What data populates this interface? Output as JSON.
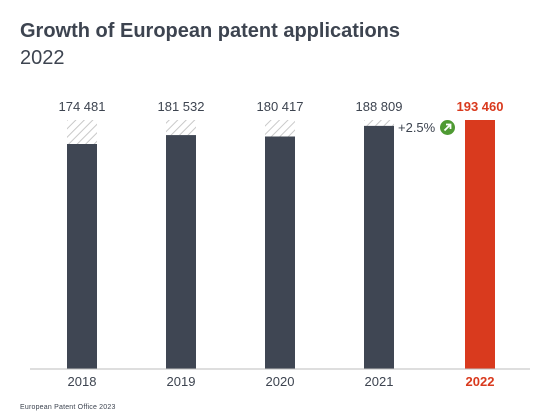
{
  "title": "Growth of European patent applications",
  "subtitle": "2022",
  "footer": "European Patent Office 2023",
  "growth": {
    "label": "+2.5%",
    "icon": "arrow-up-right-icon",
    "color": "#4f9a33"
  },
  "colors": {
    "bar": "#3f4653",
    "highlight": "#d93a1e",
    "hatch": "#c9c9c9",
    "text": "#3d4450"
  },
  "chart_data": {
    "type": "bar",
    "title": "Growth of European patent applications",
    "subtitle": "2022",
    "categories": [
      "2018",
      "2019",
      "2020",
      "2021",
      "2022"
    ],
    "values": [
      174481,
      181532,
      180417,
      188809,
      193460
    ],
    "value_labels": [
      "174 481",
      "181 532",
      "180 417",
      "188 809",
      "193 460"
    ],
    "highlight": "2022",
    "comparison_reference": 193460,
    "ylim": [
      0,
      200000
    ],
    "grid": false,
    "legend": "none"
  }
}
